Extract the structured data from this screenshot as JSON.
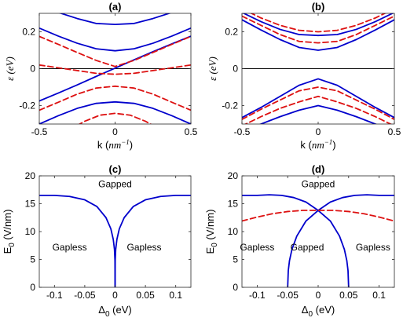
{
  "colors": {
    "solid": "#0000cc",
    "dashed": "#dd1111",
    "axis": "#262626"
  },
  "chart_data": [
    {
      "id": "a",
      "type": "line",
      "title": "(a)",
      "xlabel": "k (nm⁻¹)",
      "xlabel_prefix": "k (",
      "xlabel_unit": "nm",
      "xlabel_exp": "−1",
      "xlabel_suffix": ")",
      "ylabel": "ε (eV)",
      "xlim": [
        -0.5,
        0.5
      ],
      "ylim": [
        -0.3,
        0.3
      ],
      "xticks": [
        -0.5,
        0,
        0.5
      ],
      "xticklabels": [
        "-0.5",
        "0",
        "0.5"
      ],
      "yticks": [
        -0.2,
        0,
        0.2
      ],
      "yticklabels": [
        "-0.2",
        "0",
        "0.2"
      ],
      "zero_line": true,
      "series": [
        {
          "style": "solid",
          "x": [
            -0.5,
            -0.375,
            -0.25,
            -0.125,
            0,
            0.125,
            0.25,
            0.375,
            0.5
          ],
          "y": [
            0.22,
            0.177,
            0.138,
            0.108,
            0.097,
            0.108,
            0.138,
            0.177,
            0.22
          ]
        },
        {
          "style": "solid",
          "x": [
            -0.5,
            -0.375,
            -0.25,
            -0.125,
            0,
            0.125,
            0.25,
            0.375,
            0.5
          ],
          "y": [
            -0.175,
            -0.132,
            -0.088,
            -0.042,
            0.003,
            0.048,
            0.092,
            0.135,
            0.176
          ]
        },
        {
          "style": "solid",
          "x": [
            -0.5,
            -0.375,
            -0.25,
            -0.125,
            0,
            0.125,
            0.25,
            0.375,
            0.5
          ],
          "y": [
            0.33,
            0.305,
            0.272,
            0.245,
            0.24,
            0.245,
            0.272,
            0.305,
            0.33
          ]
        },
        {
          "style": "solid",
          "x": [
            -0.5,
            -0.375,
            -0.25,
            -0.125,
            0,
            0.125,
            0.25,
            0.375,
            0.5
          ],
          "y": [
            -0.3,
            -0.255,
            -0.215,
            -0.188,
            -0.18,
            -0.188,
            -0.215,
            -0.255,
            -0.3
          ]
        },
        {
          "style": "dashed",
          "x": [
            -0.5,
            -0.375,
            -0.25,
            -0.125,
            0,
            0.125,
            0.25,
            0.375,
            0.5
          ],
          "y": [
            0.175,
            0.132,
            0.088,
            0.045,
            0.012,
            0.045,
            0.088,
            0.132,
            0.175
          ]
        },
        {
          "style": "dashed",
          "x": [
            -0.5,
            -0.375,
            -0.25,
            -0.125,
            0,
            0.125,
            0.25,
            0.375,
            0.5
          ],
          "y": [
            -0.225,
            -0.182,
            -0.138,
            -0.105,
            -0.095,
            -0.105,
            -0.138,
            -0.182,
            -0.225
          ]
        },
        {
          "style": "dashed",
          "x": [
            -0.5,
            -0.375,
            -0.25,
            -0.125,
            0,
            0.125,
            0.25,
            0.375,
            0.5
          ],
          "y": [
            0.02,
            0.005,
            -0.01,
            -0.025,
            -0.03,
            -0.025,
            -0.01,
            0.005,
            0.02
          ]
        },
        {
          "style": "dashed",
          "x": [
            -0.3,
            -0.2,
            -0.1,
            0,
            0.1,
            0.2,
            0.3
          ],
          "y": [
            -0.33,
            -0.285,
            -0.252,
            -0.242,
            -0.252,
            -0.285,
            -0.33
          ]
        }
      ]
    },
    {
      "id": "b",
      "type": "line",
      "title": "(b)",
      "xlabel": "k (nm⁻¹)",
      "xlabel_prefix": "k (",
      "xlabel_unit": "nm",
      "xlabel_exp": "−1",
      "xlabel_suffix": ")",
      "ylabel": "ε (eV)",
      "xlim": [
        -0.5,
        0.5
      ],
      "ylim": [
        -0.3,
        0.3
      ],
      "xticks": [
        -0.5,
        0,
        0.5
      ],
      "xticklabels": [
        "-0.5",
        "0",
        "0.5"
      ],
      "yticks": [
        -0.2,
        0,
        0.2
      ],
      "yticklabels": [
        "-0.2",
        "0",
        "0.2"
      ],
      "zero_line": true,
      "series": [
        {
          "style": "solid",
          "x": [
            -0.5,
            -0.375,
            -0.25,
            -0.125,
            0,
            0.125,
            0.25,
            0.375,
            0.5
          ],
          "y": [
            0.265,
            0.21,
            0.158,
            0.115,
            0.1,
            0.115,
            0.158,
            0.21,
            0.265
          ]
        },
        {
          "style": "solid",
          "x": [
            -0.5,
            -0.375,
            -0.25,
            -0.125,
            0,
            0.125,
            0.25,
            0.375,
            0.5
          ],
          "y": [
            0.305,
            0.255,
            0.213,
            0.185,
            0.18,
            0.185,
            0.213,
            0.255,
            0.305
          ]
        },
        {
          "style": "solid",
          "x": [
            -0.5,
            -0.375,
            -0.25,
            -0.125,
            0,
            0.125,
            0.25,
            0.375,
            0.5
          ],
          "y": [
            -0.265,
            -0.21,
            -0.15,
            -0.09,
            -0.055,
            -0.09,
            -0.15,
            -0.21,
            -0.265
          ]
        },
        {
          "style": "solid",
          "x": [
            -0.5,
            -0.375,
            -0.25,
            -0.125,
            0,
            0.125,
            0.25,
            0.375,
            0.5
          ],
          "y": [
            -0.34,
            -0.3,
            -0.26,
            -0.225,
            -0.2,
            -0.225,
            -0.26,
            -0.3,
            -0.34
          ]
        },
        {
          "style": "dashed",
          "x": [
            -0.5,
            -0.375,
            -0.25,
            -0.125,
            0,
            0.125,
            0.25,
            0.375,
            0.5
          ],
          "y": [
            0.285,
            0.235,
            0.185,
            0.148,
            0.14,
            0.148,
            0.185,
            0.235,
            0.285
          ]
        },
        {
          "style": "dashed",
          "x": [
            -0.5,
            -0.375,
            -0.25,
            -0.125,
            0,
            0.125,
            0.25,
            0.375,
            0.5
          ],
          "y": [
            0.325,
            0.275,
            0.235,
            0.208,
            0.2,
            0.208,
            0.235,
            0.275,
            0.325
          ]
        },
        {
          "style": "dashed",
          "x": [
            -0.5,
            -0.375,
            -0.25,
            -0.125,
            0,
            0.125,
            0.25,
            0.375,
            0.5
          ],
          "y": [
            -0.275,
            -0.22,
            -0.17,
            -0.12,
            -0.1,
            -0.12,
            -0.17,
            -0.22,
            -0.275
          ]
        },
        {
          "style": "dashed",
          "x": [
            -0.5,
            -0.375,
            -0.25,
            -0.125,
            0,
            0.125,
            0.25,
            0.375,
            0.5
          ],
          "y": [
            -0.31,
            -0.26,
            -0.215,
            -0.18,
            -0.15,
            -0.18,
            -0.215,
            -0.26,
            -0.31
          ]
        }
      ]
    },
    {
      "id": "c",
      "type": "line",
      "title": "(c)",
      "xlabel": "Δ₀ (eV)",
      "xlabel_main": "Δ",
      "xlabel_sub": "0",
      "xlabel_rest": " (eV)",
      "ylabel": "E₀ (V/nm)",
      "ylabel_main": "E",
      "ylabel_sub": "0",
      "ylabel_rest": " (V/nm)",
      "xlim": [
        -0.125,
        0.125
      ],
      "ylim": [
        0,
        20
      ],
      "xticks": [
        -0.1,
        -0.05,
        0,
        0.05,
        0.1
      ],
      "xticklabels": [
        "-0.1",
        "-0.05",
        "0",
        "0.05",
        "0.1"
      ],
      "yticks": [
        0,
        5,
        10,
        15,
        20
      ],
      "yticklabels": [
        "0",
        "5",
        "10",
        "15",
        "20"
      ],
      "annotations": [
        {
          "text": "Gapped",
          "x": 0,
          "y": 18.5
        },
        {
          "text": "Gapless",
          "x": -0.075,
          "y": 7.2
        },
        {
          "text": "Gapless",
          "x": 0.048,
          "y": 7.2
        }
      ],
      "series": [
        {
          "style": "solid",
          "x": [
            0,
            -0.0002,
            -0.001,
            -0.003,
            -0.007,
            -0.015,
            -0.03,
            -0.05,
            -0.075,
            -0.1,
            -0.125
          ],
          "y": [
            0,
            4.8,
            6.8,
            8.6,
            10.5,
            12.5,
            14.5,
            15.7,
            16.3,
            16.5,
            16.5
          ]
        },
        {
          "style": "solid",
          "x": [
            0,
            0.0002,
            0.001,
            0.003,
            0.007,
            0.015,
            0.03,
            0.05,
            0.075,
            0.1,
            0.125
          ],
          "y": [
            0,
            4.8,
            6.8,
            8.6,
            10.5,
            12.5,
            14.5,
            15.7,
            16.3,
            16.5,
            16.5
          ]
        }
      ]
    },
    {
      "id": "d",
      "type": "line",
      "title": "(d)",
      "xlabel": "Δ₀ (eV)",
      "xlabel_main": "Δ",
      "xlabel_sub": "0",
      "xlabel_rest": " (eV)",
      "ylabel": "E₀ (V/nm)",
      "ylabel_main": "E",
      "ylabel_sub": "0",
      "ylabel_rest": " (V/nm)",
      "xlim": [
        -0.125,
        0.125
      ],
      "ylim": [
        0,
        20
      ],
      "xticks": [
        -0.1,
        -0.05,
        0,
        0.05,
        0.1
      ],
      "xticklabels": [
        "-0.1",
        "-0.05",
        "0",
        "0.05",
        "0.1"
      ],
      "yticks": [
        0,
        5,
        10,
        15,
        20
      ],
      "yticklabels": [
        "0",
        "5",
        "10",
        "15",
        "20"
      ],
      "annotations": [
        {
          "text": "Gapped",
          "x": 0,
          "y": 18.5
        },
        {
          "text": "Gapless",
          "x": -0.1,
          "y": 7.2
        },
        {
          "text": "Gapped",
          "x": -0.018,
          "y": 7.2
        },
        {
          "text": "Gapless",
          "x": 0.09,
          "y": 7.2
        }
      ],
      "series": [
        {
          "style": "solid",
          "x": [
            -0.05,
            -0.049,
            -0.047,
            -0.043,
            -0.035,
            -0.02,
            0,
            0.02,
            0.04,
            0.06,
            0.08,
            0.1,
            0.125
          ],
          "y": [
            0,
            3,
            4.8,
            6.8,
            9.2,
            11.9,
            13.8,
            15.3,
            16.1,
            16.5,
            16.6,
            16.5,
            16.5
          ]
        },
        {
          "style": "solid",
          "x": [
            0.05,
            0.049,
            0.047,
            0.043,
            0.035,
            0.02,
            0,
            -0.02,
            -0.04,
            -0.06,
            -0.08,
            -0.1,
            -0.125
          ],
          "y": [
            0,
            3,
            4.8,
            6.8,
            9.2,
            11.9,
            13.8,
            15.3,
            16.1,
            16.5,
            16.6,
            16.5,
            16.5
          ]
        },
        {
          "style": "dashed",
          "x": [
            -0.125,
            -0.1,
            -0.075,
            -0.05,
            -0.025,
            0,
            0.025,
            0.05,
            0.075,
            0.1,
            0.125
          ],
          "y": [
            11.9,
            12.6,
            13.2,
            13.6,
            13.8,
            13.8,
            13.8,
            13.6,
            13.2,
            12.6,
            11.9
          ]
        }
      ]
    }
  ]
}
